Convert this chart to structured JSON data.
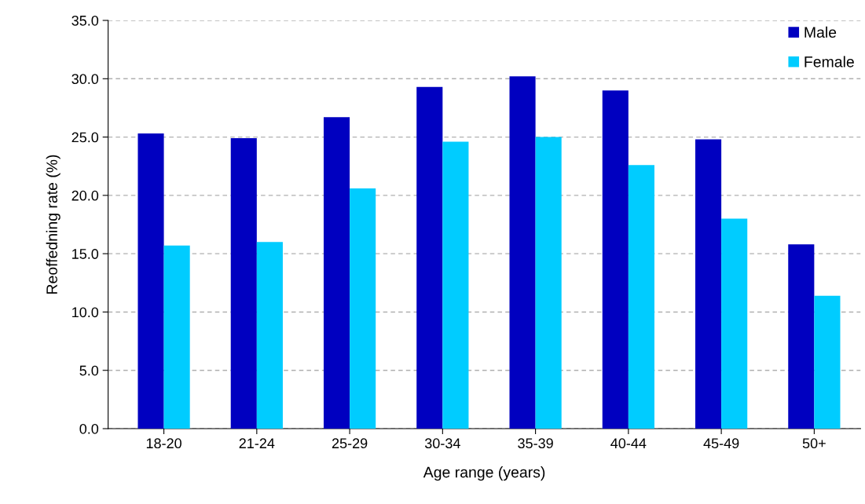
{
  "chart_data": {
    "type": "bar",
    "xlabel": "Age range (years)",
    "ylabel": "Reoffedning rate (%)",
    "categories": [
      "18-20",
      "21-24",
      "25-29",
      "30-34",
      "35-39",
      "40-44",
      "45-49",
      "50+"
    ],
    "series": [
      {
        "name": "Male",
        "color": "#0000c0",
        "values": [
          25.3,
          24.9,
          26.7,
          29.3,
          30.2,
          29.0,
          24.8,
          15.8
        ]
      },
      {
        "name": "Female",
        "color": "#00ccff",
        "values": [
          15.7,
          16.0,
          20.6,
          24.6,
          25.0,
          22.6,
          18.0,
          11.4
        ]
      }
    ],
    "ylim": [
      0,
      35
    ],
    "yticks": [
      {
        "value": 0,
        "label": "0.0"
      },
      {
        "value": 5,
        "label": "5.0"
      },
      {
        "value": 10,
        "label": "10.0"
      },
      {
        "value": 15,
        "label": "15.0"
      },
      {
        "value": 20,
        "label": "20.0"
      },
      {
        "value": 25,
        "label": "25.0"
      },
      {
        "value": 30,
        "label": "30.0"
      },
      {
        "value": 35,
        "label": "35.0"
      }
    ],
    "grid": "y",
    "legend": "top right"
  }
}
